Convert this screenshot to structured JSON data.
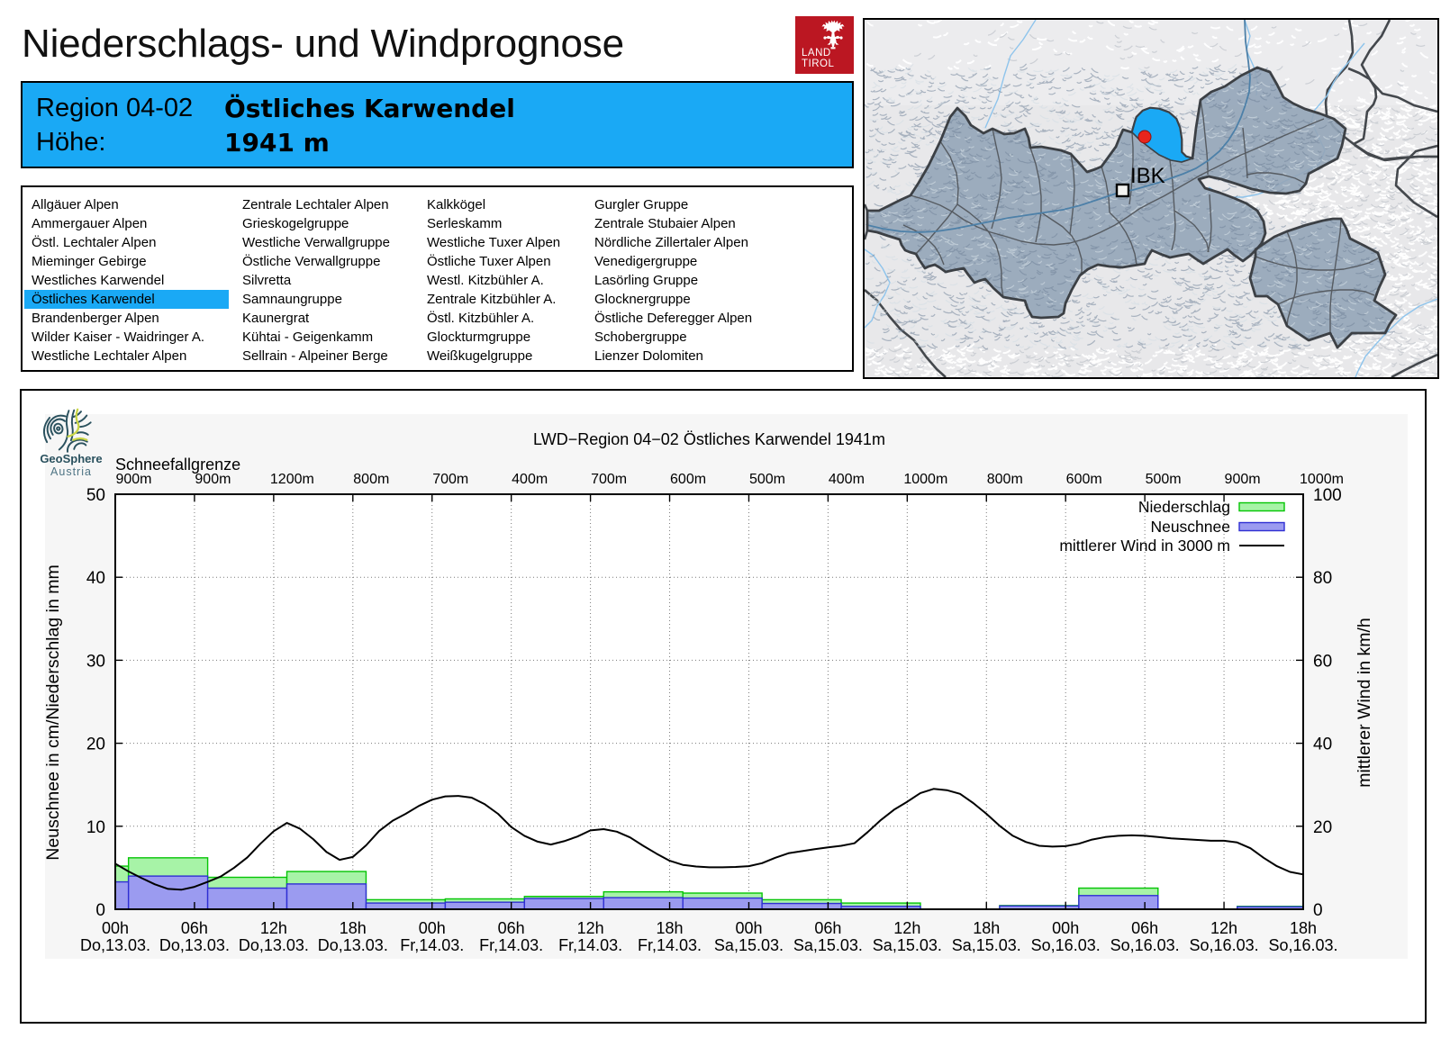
{
  "header": {
    "title": "Niederschlags- und Windprognose",
    "logo": {
      "line1": "LAND",
      "line2": "TIROL"
    },
    "region_label": "Region 04-02",
    "region_name": "Östliches Karwendel",
    "altitude_label": "Höhe:",
    "altitude_value": "1941 m"
  },
  "region_list": {
    "selected": "Östliches Karwendel",
    "columns": [
      [
        "Allgäuer Alpen",
        "Ammergauer Alpen",
        "Östl. Lechtaler Alpen",
        "Mieminger Gebirge",
        "Westliches Karwendel",
        "Östliches Karwendel",
        "Brandenberger Alpen",
        "Wilder Kaiser - Waidringer A.",
        "Westliche Lechtaler Alpen"
      ],
      [
        "Zentrale Lechtaler Alpen",
        "Grieskogelgruppe",
        "Westliche Verwallgruppe",
        "Östliche Verwallgruppe",
        "Silvretta",
        "Samnaungruppe",
        "Kaunergrat",
        "Kühtai - Geigenkamm",
        "Sellrain - Alpeiner Berge"
      ],
      [
        "Kalkkögel",
        "Serleskamm",
        "Westliche Tuxer Alpen",
        "Östliche Tuxer Alpen",
        "Westl. Kitzbühler A.",
        "Zentrale Kitzbühler A.",
        "Östl. Kitzbühler A.",
        "Glockturmgruppe",
        "Weißkugelgruppe"
      ],
      [
        "Gurgler Gruppe",
        "Zentrale Stubaier Alpen",
        "Nördliche Zillertaler Alpen",
        "Venedigergruppe",
        "Lasörling Gruppe",
        "Glocknergruppe",
        "Östliche Deferegger Alpen",
        "Schobergruppe",
        "Lienzer Dolomiten"
      ]
    ]
  },
  "map": {
    "city_label": "IBK",
    "highlight_color": "#1aa9f5",
    "region_fill": "#93a5b8",
    "marker_color": "#e8251c"
  },
  "colors": {
    "accent_blue": "#1aa9f5",
    "tirol_red": "#bb1722",
    "precip_fill": "#a7f3a7",
    "precip_edge": "#06c506",
    "snow_fill": "#9b9bf0",
    "snow_edge": "#2f2fd3",
    "wind_line": "#000000",
    "chart_canvas": "#f6f6f6"
  },
  "brand": {
    "geosphere_line1": "GeoSphere",
    "geosphere_line2": "Austria"
  },
  "chart_data": {
    "type": "bar+line",
    "title": "LWD−Region 04−02 Östliches Karwendel 1941m",
    "top_axis_label": "Schneefallgrenze",
    "snowline_labels": [
      "900m",
      "900m",
      "1200m",
      "800m",
      "700m",
      "400m",
      "700m",
      "600m",
      "500m",
      "400m",
      "1000m",
      "800m",
      "600m",
      "500m",
      "900m",
      "1000m"
    ],
    "x_tick_times": [
      "00h",
      "06h",
      "12h",
      "18h",
      "00h",
      "06h",
      "12h",
      "18h",
      "00h",
      "06h",
      "12h",
      "18h",
      "00h",
      "06h",
      "12h",
      "18h"
    ],
    "x_tick_dates": [
      "Do,13.03.",
      "Do,13.03.",
      "Do,13.03.",
      "Do,13.03.",
      "Fr,14.03.",
      "Fr,14.03.",
      "Fr,14.03.",
      "Fr,14.03.",
      "Sa,15.03.",
      "Sa,15.03.",
      "Sa,15.03.",
      "Sa,15.03.",
      "So,16.03.",
      "So,16.03.",
      "So,16.03.",
      "So,16.03."
    ],
    "ylabel": "Neuschnee in cm/Niederschlag in mm",
    "y2label": "mittlerer Wind in km/h",
    "ylim": [
      0,
      50
    ],
    "y2lim": [
      0,
      100
    ],
    "y_ticks": [
      0,
      10,
      20,
      30,
      40,
      50
    ],
    "y2_ticks": [
      0,
      20,
      40,
      60,
      80,
      100
    ],
    "x_hours_range": [
      0,
      90
    ],
    "legend": [
      {
        "label": "Niederschlag",
        "type": "box",
        "series": "precipitation"
      },
      {
        "label": "Neuschnee",
        "type": "box",
        "series": "new_snow"
      },
      {
        "label": "mittlerer Wind in 3000 m",
        "type": "line",
        "series": "wind"
      }
    ],
    "bars": {
      "interval_hours": 6,
      "start_hours": [
        -5,
        1,
        7,
        13,
        19,
        25,
        31,
        37,
        43,
        49,
        55,
        61,
        67,
        73,
        79,
        85
      ],
      "precipitation_mm": [
        5.2,
        6.2,
        3.85,
        4.55,
        1.15,
        1.25,
        1.55,
        2.1,
        1.95,
        1.15,
        0.75,
        0,
        0.45,
        2.55,
        0,
        0.35
      ],
      "new_snow_cm": [
        3.3,
        4.0,
        2.55,
        3.05,
        0.75,
        0.85,
        1.3,
        1.4,
        1.35,
        0.7,
        0.35,
        0,
        0.4,
        1.65,
        0,
        0.3
      ]
    },
    "wind_kmh": {
      "hours": [
        0,
        1,
        2,
        3,
        4,
        5,
        6,
        7,
        8,
        9,
        10,
        11,
        12,
        13,
        14,
        15,
        16,
        17,
        18,
        19,
        20,
        21,
        22,
        23,
        24,
        25,
        26,
        27,
        28,
        29,
        30,
        31,
        32,
        33,
        34,
        35,
        36,
        37,
        38,
        39,
        40,
        41,
        42,
        43,
        44,
        45,
        46,
        47,
        48,
        49,
        50,
        51,
        52,
        53,
        54,
        55,
        56,
        57,
        58,
        59,
        60,
        61,
        62,
        63,
        64,
        65,
        66,
        67,
        68,
        69,
        70,
        71,
        72,
        73,
        74,
        75,
        76,
        77,
        78,
        79,
        80,
        81,
        82,
        83,
        84,
        85,
        86,
        87,
        88,
        89,
        90
      ],
      "values": [
        11.0,
        9.1,
        7.5,
        6.0,
        4.9,
        4.7,
        5.4,
        6.6,
        7.9,
        10.0,
        12.5,
        15.8,
        18.8,
        20.8,
        19.4,
        16.9,
        13.8,
        11.9,
        12.6,
        15.4,
        18.9,
        21.3,
        23.0,
        24.9,
        26.4,
        27.2,
        27.3,
        26.9,
        25.3,
        23.0,
        19.8,
        17.7,
        16.3,
        15.6,
        16.4,
        17.5,
        19.0,
        19.3,
        18.7,
        17.3,
        15.3,
        13.4,
        11.7,
        10.7,
        10.3,
        10.1,
        10.1,
        10.2,
        10.4,
        11.1,
        12.4,
        13.5,
        14.0,
        14.5,
        14.9,
        15.3,
        15.9,
        18.6,
        21.5,
        24.0,
        25.9,
        28.0,
        29.0,
        28.7,
        27.8,
        25.6,
        23.0,
        20.1,
        17.7,
        16.2,
        15.3,
        15.1,
        15.2,
        15.8,
        16.8,
        17.4,
        17.7,
        17.8,
        17.7,
        17.4,
        17.1,
        16.9,
        16.7,
        16.5,
        16.5,
        16.1,
        14.7,
        12.4,
        10.4,
        9.0,
        8.4
      ]
    }
  }
}
